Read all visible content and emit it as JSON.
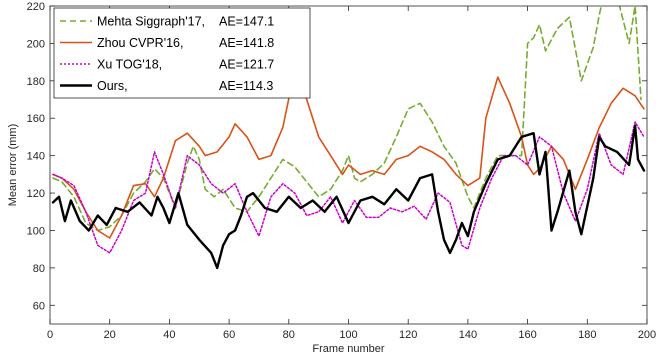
{
  "chart_data": {
    "type": "line",
    "xlabel": "Frame number",
    "ylabel": "Mean error (mm)",
    "xlim": [
      0,
      200
    ],
    "ylim": [
      50,
      220
    ],
    "xticks": [
      0,
      20,
      40,
      60,
      80,
      100,
      120,
      140,
      160,
      180,
      200
    ],
    "yticks": [
      60,
      80,
      100,
      120,
      140,
      160,
      180,
      200,
      220
    ],
    "grid": false,
    "legend_position": "top-left",
    "series": [
      {
        "name": "Mehta Siggraph'17,",
        "metric": "AE=147.1",
        "color": "#77ac30",
        "dash": "6,4",
        "width": 1.6,
        "x": [
          1,
          4,
          8,
          12,
          16,
          20,
          24,
          28,
          32,
          35,
          38,
          42,
          46,
          48,
          50,
          52,
          55,
          58,
          62,
          66,
          70,
          74,
          78,
          82,
          86,
          90,
          94,
          98,
          100,
          102,
          104,
          108,
          112,
          116,
          120,
          124,
          128,
          132,
          136,
          140,
          142,
          146,
          150,
          154,
          158,
          160,
          162,
          164,
          166,
          170,
          174,
          178,
          182,
          184,
          186,
          190,
          194,
          196,
          198
        ],
        "y": [
          128,
          126,
          118,
          104,
          100,
          102,
          108,
          120,
          126,
          133,
          128,
          112,
          136,
          145,
          138,
          122,
          118,
          122,
          112,
          110,
          118,
          128,
          138,
          134,
          126,
          118,
          122,
          132,
          140,
          128,
          126,
          130,
          136,
          150,
          165,
          168,
          158,
          145,
          136,
          118,
          112,
          128,
          140,
          140,
          140,
          200,
          203,
          210,
          196,
          208,
          214,
          180,
          198,
          215,
          230,
          225,
          200,
          220,
          170
        ]
      },
      {
        "name": "Zhou CVPR'16,",
        "metric": "AE=141.8",
        "color": "#d95319",
        "dash": "",
        "width": 1.6,
        "x": [
          1,
          4,
          8,
          12,
          16,
          20,
          24,
          28,
          32,
          35,
          38,
          42,
          46,
          50,
          52,
          56,
          60,
          62,
          66,
          70,
          74,
          78,
          82,
          86,
          90,
          94,
          98,
          100,
          104,
          108,
          112,
          116,
          120,
          124,
          128,
          132,
          136,
          140,
          144,
          146,
          150,
          154,
          158,
          160,
          162,
          164,
          168,
          172,
          176,
          180,
          184,
          188,
          192,
          196,
          199
        ],
        "y": [
          130,
          128,
          122,
          110,
          100,
          96,
          108,
          124,
          125,
          118,
          128,
          148,
          152,
          145,
          140,
          142,
          150,
          157,
          150,
          138,
          140,
          155,
          186,
          170,
          150,
          140,
          130,
          135,
          130,
          132,
          130,
          138,
          140,
          145,
          142,
          138,
          130,
          124,
          128,
          160,
          182,
          168,
          150,
          135,
          130,
          133,
          145,
          138,
          122,
          138,
          155,
          168,
          176,
          172,
          165
        ]
      },
      {
        "name": "Xu TOG'18,",
        "metric": "AE=121.7",
        "color": "#cc00cc",
        "dash": "2,2",
        "width": 1.5,
        "x": [
          1,
          4,
          8,
          12,
          16,
          20,
          24,
          28,
          32,
          35,
          38,
          42,
          46,
          50,
          54,
          58,
          62,
          66,
          70,
          74,
          78,
          82,
          86,
          90,
          94,
          98,
          102,
          106,
          110,
          114,
          118,
          122,
          126,
          130,
          134,
          138,
          140,
          144,
          148,
          152,
          156,
          160,
          164,
          168,
          172,
          176,
          180,
          184,
          188,
          192,
          196,
          199
        ],
        "y": [
          130,
          128,
          124,
          110,
          92,
          88,
          100,
          116,
          120,
          142,
          130,
          112,
          140,
          135,
          125,
          120,
          125,
          110,
          97,
          118,
          125,
          120,
          108,
          110,
          118,
          104,
          116,
          107,
          107,
          112,
          110,
          113,
          106,
          120,
          115,
          92,
          90,
          112,
          128,
          140,
          140,
          135,
          150,
          145,
          120,
          105,
          122,
          152,
          135,
          130,
          158,
          150
        ]
      },
      {
        "name": "Ours,",
        "metric": "AE=114.3",
        "color": "#000000",
        "dash": "",
        "width": 2.4,
        "x": [
          1,
          3,
          5,
          7,
          10,
          13,
          16,
          19,
          22,
          26,
          30,
          34,
          36,
          38,
          40,
          43,
          46,
          50,
          54,
          56,
          58,
          60,
          62,
          64,
          66,
          68,
          72,
          76,
          80,
          84,
          88,
          92,
          96,
          100,
          104,
          108,
          112,
          116,
          120,
          124,
          128,
          130,
          132,
          134,
          136,
          138,
          140,
          142,
          146,
          150,
          154,
          158,
          162,
          164,
          166,
          168,
          170,
          174,
          176,
          178,
          182,
          184,
          186,
          190,
          194,
          196,
          197,
          199
        ],
        "y": [
          115,
          118,
          105,
          116,
          105,
          100,
          108,
          103,
          112,
          110,
          115,
          108,
          118,
          112,
          104,
          120,
          103,
          95,
          88,
          80,
          92,
          98,
          100,
          108,
          118,
          120,
          112,
          110,
          118,
          112,
          116,
          110,
          118,
          104,
          116,
          118,
          114,
          122,
          116,
          128,
          130,
          110,
          95,
          88,
          95,
          104,
          97,
          110,
          125,
          138,
          140,
          150,
          152,
          130,
          142,
          100,
          110,
          132,
          110,
          98,
          128,
          150,
          145,
          142,
          135,
          156,
          138,
          132
        ]
      }
    ]
  }
}
